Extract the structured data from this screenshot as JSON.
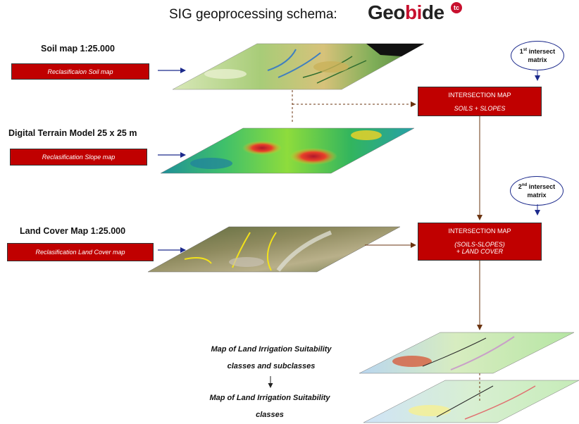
{
  "header": {
    "title": "SIG geoprocessing schema:",
    "logo_pre": "Geo",
    "logo_red": "bi",
    "logo_post": "de",
    "logo_badge": "tc"
  },
  "layers": {
    "soil": {
      "heading": "Soil map 1:25.000",
      "button": "Reclasificaion Soil map"
    },
    "dtm": {
      "heading": "Digital Terrain Model 25 x 25 m",
      "button": "Reclasification Slope map"
    },
    "landcover": {
      "heading": "Land Cover Map 1:25.000",
      "button": "Reclasification Land Cover map"
    }
  },
  "intersections": {
    "first": {
      "title": "INTERSECTION MAP",
      "line1": "SOILS + SLOPES",
      "line2": ""
    },
    "second": {
      "title": "INTERSECTION MAP",
      "line1": "(SOILS-SLOPES)",
      "line2": "+ LAND COVER"
    }
  },
  "matrices": {
    "first": {
      "ord": "1",
      "sup": "st",
      "label1": " intersect",
      "label2": "matrix"
    },
    "second": {
      "ord": "2",
      "sup": "nd",
      "label1": " intersect",
      "label2": "matrix"
    }
  },
  "results": {
    "first": {
      "line1": "Map of Land Irrigation Suitability",
      "line2": "classes and subclasses"
    },
    "second": {
      "line1": "Map of Land Irrigation Suitability",
      "line2": "classes"
    }
  },
  "colors": {
    "red_box": "#c00000",
    "arrow_blue": "#1c2a8c",
    "arrow_brown": "#6b3410"
  }
}
